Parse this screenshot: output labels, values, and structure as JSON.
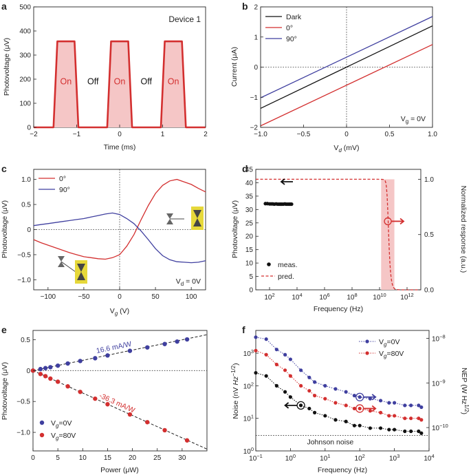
{
  "chart_data": [
    {
      "panel": "a",
      "type": "line",
      "xlabel": "Time (ms)",
      "ylabel": "Photovoltage (μV)",
      "xlim": [
        -2,
        2
      ],
      "ylim": [
        0,
        500
      ],
      "xticks": [
        "−2",
        "−1",
        "0",
        "1",
        "2"
      ],
      "yticks": [
        "0",
        "100",
        "200",
        "300",
        "400",
        "500"
      ],
      "annotation": "Device 1",
      "pulses": [
        {
          "start": -1.5,
          "end": -1.0
        },
        {
          "start": -0.25,
          "end": 0.25
        },
        {
          "start": 1.0,
          "end": 1.5
        }
      ],
      "on_level": 357,
      "off_level": 0,
      "labels": [
        {
          "text": "On",
          "x": -1.25,
          "y": 190,
          "color": "#d32f2f"
        },
        {
          "text": "Off",
          "x": -0.62,
          "y": 190,
          "color": "#111111"
        },
        {
          "text": "On",
          "x": 0.0,
          "y": 190,
          "color": "#d32f2f"
        },
        {
          "text": "Off",
          "x": 0.62,
          "y": 190,
          "color": "#111111"
        },
        {
          "text": "On",
          "x": 1.25,
          "y": 190,
          "color": "#d32f2f"
        }
      ],
      "colors": {
        "line": "#d32f2f",
        "fill": "#f5c6c6"
      }
    },
    {
      "panel": "b",
      "type": "line",
      "xlabel_main": "V",
      "xlabel_sub": "d",
      "xlabel_tail": " (mV)",
      "ylabel": "Current (μA)",
      "xlim": [
        -1,
        1
      ],
      "ylim": [
        -2,
        2
      ],
      "xticks": [
        "−1.0",
        "−0.5",
        "0",
        "0.5",
        "1.0"
      ],
      "yticks": [
        "−2",
        "−1",
        "0",
        "1",
        "2"
      ],
      "annotation_main": "V",
      "annotation_sub": "g",
      "annotation_tail": " = 0V",
      "series": [
        {
          "name": "Dark",
          "color": "#111111",
          "x": [
            -1,
            1
          ],
          "y": [
            -1.37,
            1.37
          ]
        },
        {
          "name": "0°",
          "color": "#d32f2f",
          "x": [
            -1,
            1
          ],
          "y": [
            -1.95,
            0.75
          ]
        },
        {
          "name": "90°",
          "color": "#3f3f9f",
          "x": [
            -1,
            1
          ],
          "y": [
            -1.02,
            1.68
          ]
        }
      ]
    },
    {
      "panel": "c",
      "type": "line",
      "xlabel_main": "V",
      "xlabel_sub": "g",
      "xlabel_tail": " (V)",
      "ylabel": "Photovoltage (μV)",
      "xlim": [
        -120,
        120
      ],
      "ylim": [
        -1.2,
        1.2
      ],
      "xticks": [
        "−100",
        "−50",
        "0",
        "50",
        "100"
      ],
      "yticks": [
        "−1.0",
        "−0.5",
        "0",
        "0.5",
        "1.0"
      ],
      "annotation_main": "V",
      "annotation_sub": "d",
      "annotation_tail": " = 0V",
      "series": [
        {
          "name": "0°",
          "color": "#d32f2f",
          "x": [
            -120,
            -110,
            -100,
            -90,
            -80,
            -70,
            -60,
            -50,
            -40,
            -30,
            -20,
            -10,
            0,
            10,
            20,
            30,
            40,
            50,
            60,
            70,
            80,
            90,
            100,
            110,
            120
          ],
          "y": [
            -0.2,
            -0.26,
            -0.31,
            -0.36,
            -0.41,
            -0.46,
            -0.5,
            -0.54,
            -0.56,
            -0.58,
            -0.59,
            -0.56,
            -0.5,
            -0.33,
            -0.1,
            0.2,
            0.48,
            0.72,
            0.88,
            0.97,
            1.0,
            0.95,
            0.9,
            0.82,
            0.75
          ]
        },
        {
          "name": "90°",
          "color": "#3f3f9f",
          "x": [
            -120,
            -110,
            -100,
            -90,
            -80,
            -70,
            -60,
            -50,
            -40,
            -30,
            -20,
            -10,
            0,
            10,
            20,
            30,
            40,
            50,
            60,
            70,
            80,
            90,
            100,
            110,
            120
          ],
          "y": [
            0.08,
            0.1,
            0.12,
            0.14,
            0.16,
            0.18,
            0.2,
            0.22,
            0.25,
            0.28,
            0.31,
            0.33,
            0.3,
            0.22,
            0.12,
            -0.03,
            -0.2,
            -0.38,
            -0.52,
            -0.6,
            -0.64,
            -0.65,
            -0.66,
            -0.65,
            -0.62
          ]
        }
      ]
    },
    {
      "panel": "d",
      "type": "scatter",
      "xlabel": "Frequency (Hz)",
      "ylabel": "Photovoltage (μV)",
      "ylabel_right": "Normalized response (a.u.)",
      "xscale": "log",
      "xlim": [
        10,
        10000000000000.0
      ],
      "ylim": [
        0,
        45
      ],
      "ylim_right": [
        0,
        1.09
      ],
      "xticks": [
        {
          "v": 100,
          "base": "10",
          "exp": "2"
        },
        {
          "v": 10000,
          "base": "10",
          "exp": "4"
        },
        {
          "v": 1000000.0,
          "base": "10",
          "exp": "6"
        },
        {
          "v": 100000000.0,
          "base": "10",
          "exp": "8"
        },
        {
          "v": 10000000000.0,
          "base": "10",
          "exp": "10"
        },
        {
          "v": 1000000000000.0,
          "base": "10",
          "exp": "12"
        }
      ],
      "yticks": [
        "0",
        "5",
        "10",
        "15",
        "20",
        "25",
        "30",
        "35",
        "40",
        "45"
      ],
      "yticks_right": [
        "0.0",
        "0.5",
        "1.0"
      ],
      "measured": {
        "name": "meas.",
        "color": "#111111",
        "x": [
          50,
          70,
          100,
          130,
          170,
          220,
          300,
          400,
          500,
          600,
          700,
          800,
          1000,
          1300,
          1600,
          2000,
          2500,
          3000,
          3500,
          4000
        ],
        "y": [
          32.2,
          32.2,
          32.1,
          32.1,
          32.1,
          32.0,
          32.1,
          32.0,
          32.0,
          32.0,
          32.0,
          32.0,
          32.0,
          32.1,
          32.0,
          32.0,
          32.0,
          32.0,
          32.0,
          32.0
        ]
      },
      "predicted": {
        "name": "pred.",
        "color": "#d32f2f",
        "level": 1.0,
        "cutoff": 40000000000.0
      },
      "band": {
        "low": 13000000000.0,
        "high": 120000000000.0,
        "color": "#f5c6c6"
      },
      "legend": "bottom-left"
    },
    {
      "panel": "e",
      "type": "scatter",
      "xlabel": "Power (μW)",
      "ylabel": "Photovoltage (μV)",
      "xlim": [
        0,
        35
      ],
      "ylim": [
        -1.3,
        0.65
      ],
      "xticks": [
        "0",
        "5",
        "10",
        "15",
        "20",
        "25",
        "30"
      ],
      "yticks": [
        "−1.0",
        "−0.5",
        "0",
        "0.5"
      ],
      "series": [
        {
          "name_main": "V",
          "name_sub": "g",
          "name_tail": "=0V",
          "color": "#3f3f9f",
          "x": [
            0,
            1.5,
            2.5,
            3.5,
            5,
            7,
            9.5,
            12.5,
            15,
            19.5,
            23,
            26.5,
            29,
            31
          ],
          "y": [
            0,
            0.025,
            0.04,
            0.055,
            0.08,
            0.115,
            0.155,
            0.2,
            0.245,
            0.32,
            0.375,
            0.43,
            0.47,
            0.505
          ],
          "fit_label": "16.6 mA/W",
          "fit_slope": 0.0166
        },
        {
          "name_main": "V",
          "name_sub": "g",
          "name_tail": "=80V",
          "color": "#d32f2f",
          "x": [
            0,
            1.5,
            2.5,
            3.5,
            5,
            7,
            9.5,
            12.5,
            15,
            19.5,
            23,
            26.5,
            31
          ],
          "y": [
            0,
            -0.055,
            -0.09,
            -0.13,
            -0.18,
            -0.255,
            -0.345,
            -0.455,
            -0.545,
            -0.71,
            -0.835,
            -0.965,
            -1.13
          ],
          "fit_label": "-36.3 mA/W",
          "fit_slope": -0.0363
        }
      ],
      "legend": "bottom-left"
    },
    {
      "panel": "f",
      "type": "line",
      "xlabel": "Frequency (Hz)",
      "ylabel": "Noise (nV Hz⁻¹ᐟ²)",
      "ylabel_main": "Noise (nV ",
      "ylabel_ital": "Hz",
      "ylabel_sup": "−1/2",
      "ylabel_close": ")",
      "ylabel_right_main": "NEP (W Hz",
      "ylabel_right_sup": "1/2",
      "ylabel_right_close": ")",
      "xscale": "log",
      "yscale": "log",
      "xlim": [
        0.1,
        10000
      ],
      "ylim": [
        1,
        5000
      ],
      "xticks": [
        {
          "v": 0.1,
          "base": "10",
          "exp": "−1"
        },
        {
          "v": 1,
          "base": "10",
          "exp": "0"
        },
        {
          "v": 10,
          "base": "10",
          "exp": "1"
        },
        {
          "v": 100,
          "base": "10",
          "exp": "2"
        },
        {
          "v": 1000,
          "base": "10",
          "exp": "3"
        },
        {
          "v": 10000,
          "base": "10",
          "exp": "4"
        }
      ],
      "yticks": [
        {
          "v": 1,
          "base": "10",
          "exp": "0"
        },
        {
          "v": 10,
          "base": "10",
          "exp": "1"
        },
        {
          "v": 100,
          "base": "10",
          "exp": "2"
        },
        {
          "v": 1000,
          "base": "10",
          "exp": "3"
        }
      ],
      "yticks_right": [
        {
          "v": 1e-10,
          "base": "10",
          "exp": "−10"
        },
        {
          "v": 1e-09,
          "base": "10",
          "exp": "−9"
        },
        {
          "v": 1e-08,
          "base": "10",
          "exp": "−8"
        }
      ],
      "ylim_right": [
        3e-11,
        1.5e-08
      ],
      "x": [
        0.1,
        0.2,
        0.4,
        0.7,
        1,
        2,
        3.5,
        5,
        10,
        20,
        40,
        70,
        100,
        200,
        400,
        700,
        1000,
        2000,
        3000,
        5000,
        6000
      ],
      "series": [
        {
          "name_main": "V",
          "name_sub": "g",
          "name_tail": "=0V",
          "color": "#3f3f9f",
          "y": [
            3100,
            2700,
            1300,
            900,
            650,
            300,
            180,
            130,
            100,
            80,
            65,
            50,
            45,
            40,
            35,
            30,
            30,
            25,
            25,
            25,
            22
          ]
        },
        {
          "name_main": "V",
          "name_sub": "g",
          "name_tail": "=80V",
          "color": "#d32f2f",
          "y": [
            1200,
            900,
            450,
            300,
            200,
            100,
            70,
            50,
            40,
            30,
            25,
            20,
            20,
            17,
            15,
            12,
            12,
            10,
            10,
            10,
            9
          ]
        },
        {
          "name": "",
          "color": "#111111",
          "y": [
            250,
            200,
            100,
            65,
            45,
            25,
            20,
            15,
            12,
            9,
            8,
            6,
            6,
            5,
            5,
            4.5,
            4.5,
            4,
            4,
            4,
            3.5
          ]
        }
      ],
      "johnson_level": 3,
      "johnson_label": "Johnson noise",
      "legend": "top-right"
    }
  ]
}
